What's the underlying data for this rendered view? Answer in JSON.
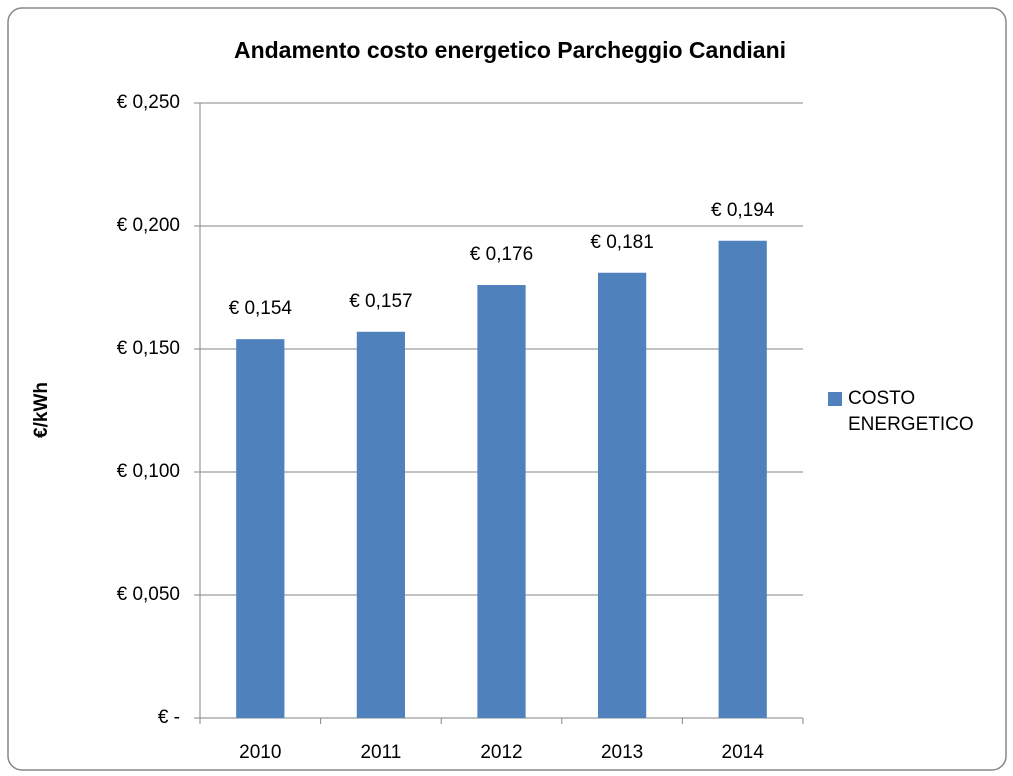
{
  "chart_data": {
    "type": "bar",
    "title": "Andamento costo energetico Parcheggio Candiani",
    "y_label": "€/kWh",
    "categories": [
      "2010",
      "2011",
      "2012",
      "2013",
      "2014"
    ],
    "series": [
      {
        "name": "COSTO ENERGETICO",
        "color": "#4f81bd",
        "values": [
          0.154,
          0.157,
          0.176,
          0.181,
          0.194
        ],
        "value_labels": [
          "€ 0,154",
          "€ 0,157",
          "€ 0,176",
          "€ 0,181",
          "€ 0,194"
        ]
      }
    ],
    "ylim": [
      0,
      0.25
    ],
    "yticks": [
      {
        "value": 0,
        "label": "€ -"
      },
      {
        "value": 0.05,
        "label": "€ 0,050"
      },
      {
        "value": 0.1,
        "label": "€ 0,100"
      },
      {
        "value": 0.15,
        "label": "€ 0,150"
      },
      {
        "value": 0.2,
        "label": "€ 0,200"
      },
      {
        "value": 0.25,
        "label": "€ 0,250"
      }
    ],
    "grid": true,
    "legend": "right"
  }
}
